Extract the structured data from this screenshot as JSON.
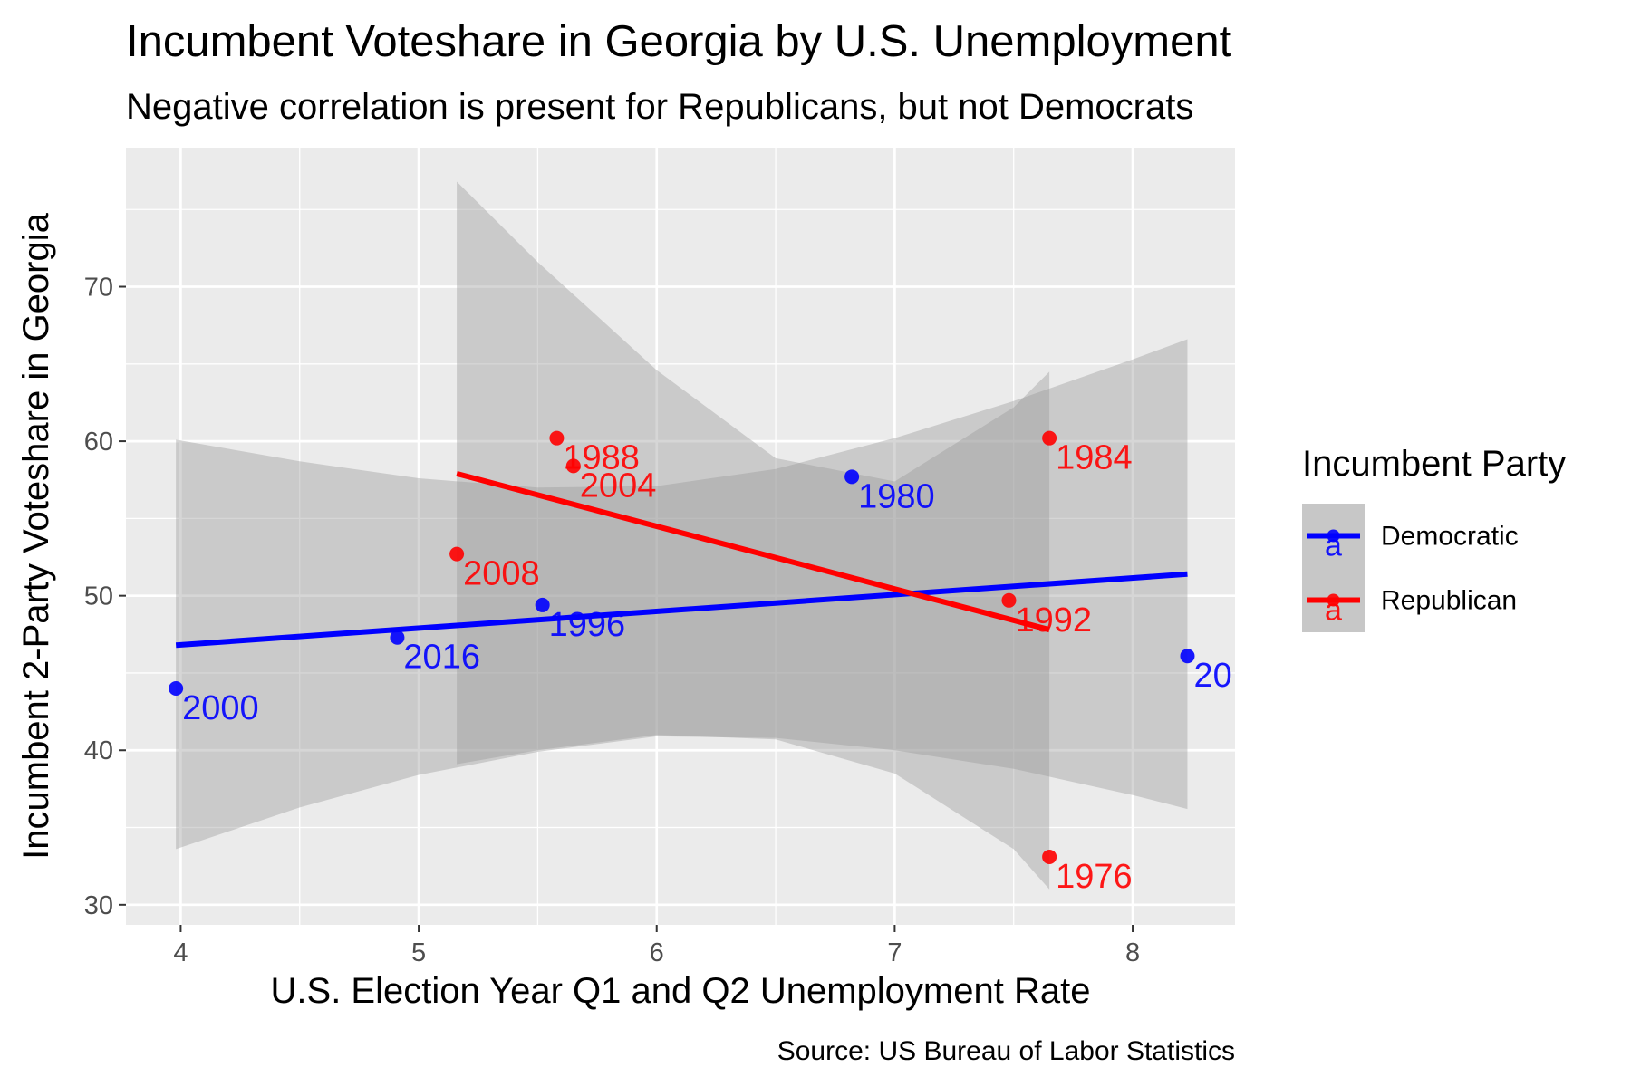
{
  "chart_data": {
    "type": "scatter",
    "title": "Incumbent Voteshare in Georgia by U.S. Unemployment",
    "subtitle": "Negative correlation is present for Republicans, but not Democrats",
    "xlabel": "U.S. Election Year Q1 and Q2 Unemployment Rate",
    "ylabel": "Incumbent 2-Party Voteshare in Georgia",
    "caption": "Source: US Bureau of Labor Statistics",
    "xlim": [
      3.77,
      8.43
    ],
    "ylim": [
      28.7,
      79.0
    ],
    "x_ticks": [
      4,
      5,
      6,
      7,
      8
    ],
    "y_ticks": [
      30,
      40,
      50,
      60,
      70
    ],
    "grid": true,
    "legend": {
      "title": "Incumbent Party",
      "position": "right",
      "key_glyph": "a",
      "entries": [
        {
          "name": "Democratic",
          "color": "#0000ff"
        },
        {
          "name": "Republican",
          "color": "#ff0000"
        }
      ]
    },
    "series": [
      {
        "name": "Democratic",
        "color": "#0000ff",
        "points": [
          {
            "x": 3.98,
            "y": 44.0,
            "label": "2000"
          },
          {
            "x": 4.91,
            "y": 47.3,
            "label": "2016"
          },
          {
            "x": 5.52,
            "y": 49.4,
            "label": "1996"
          },
          {
            "x": 6.82,
            "y": 57.7,
            "label": "1980"
          },
          {
            "x": 8.23,
            "y": 46.1,
            "label": "20"
          }
        ],
        "fit": {
          "x": [
            3.98,
            8.23
          ],
          "y": [
            46.8,
            51.4
          ]
        },
        "ribbon": [
          {
            "x": 3.98,
            "lo": 33.6,
            "hi": 60.1
          },
          {
            "x": 4.5,
            "lo": 36.3,
            "hi": 58.7
          },
          {
            "x": 5.0,
            "lo": 38.4,
            "hi": 57.6
          },
          {
            "x": 5.5,
            "lo": 39.9,
            "hi": 57.0
          },
          {
            "x": 6.0,
            "lo": 40.9,
            "hi": 57.1
          },
          {
            "x": 6.5,
            "lo": 40.8,
            "hi": 58.2
          },
          {
            "x": 7.0,
            "lo": 40.0,
            "hi": 60.2
          },
          {
            "x": 7.5,
            "lo": 38.8,
            "hi": 62.6
          },
          {
            "x": 8.0,
            "lo": 37.1,
            "hi": 65.3
          },
          {
            "x": 8.23,
            "lo": 36.2,
            "hi": 66.6
          }
        ]
      },
      {
        "name": "Republican",
        "color": "#ff0000",
        "points": [
          {
            "x": 5.58,
            "y": 60.2,
            "label": "1988"
          },
          {
            "x": 5.65,
            "y": 58.4,
            "label": "2004"
          },
          {
            "x": 5.16,
            "y": 52.7,
            "label": "2008"
          },
          {
            "x": 7.65,
            "y": 60.2,
            "label": "1984"
          },
          {
            "x": 7.48,
            "y": 49.7,
            "label": "1992"
          },
          {
            "x": 7.65,
            "y": 33.1,
            "label": "1976"
          }
        ],
        "fit": {
          "x": [
            5.16,
            7.65
          ],
          "y": [
            57.9,
            47.8
          ]
        },
        "ribbon": [
          {
            "x": 5.16,
            "lo": 39.1,
            "hi": 76.8
          },
          {
            "x": 5.5,
            "lo": 40.0,
            "hi": 71.6
          },
          {
            "x": 6.0,
            "lo": 41.0,
            "hi": 64.6
          },
          {
            "x": 6.5,
            "lo": 40.7,
            "hi": 58.9
          },
          {
            "x": 7.0,
            "lo": 38.5,
            "hi": 57.4
          },
          {
            "x": 7.5,
            "lo": 33.6,
            "hi": 62.2
          },
          {
            "x": 7.65,
            "lo": 31.0,
            "hi": 64.5
          }
        ]
      }
    ]
  }
}
